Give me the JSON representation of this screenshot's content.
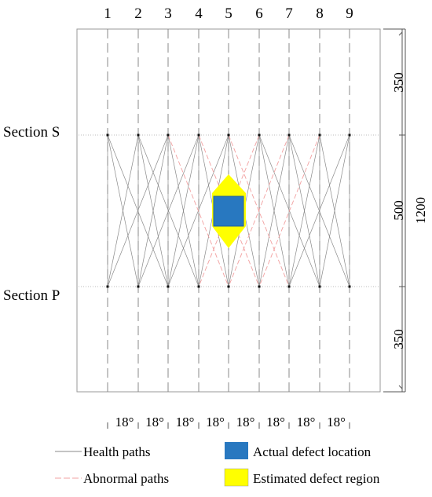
{
  "columns": [
    "1",
    "2",
    "3",
    "4",
    "5",
    "6",
    "7",
    "8",
    "9"
  ],
  "sections": {
    "top": "Section S",
    "bottom": "Section P"
  },
  "dimensions": {
    "upper": "350",
    "middle": "500",
    "lower": "350",
    "total": "1200"
  },
  "angle_label": "18°",
  "legend": {
    "health": "Health paths",
    "abnormal": "Abnormal paths",
    "actual": "Actual defect location",
    "estimated": "Estimated defect region"
  },
  "colors": {
    "health_path": "#8a8a8a",
    "abnormal_path": "#f2a0a0",
    "actual_defect": "#2878c0",
    "estimated_region": "#ffff00"
  }
}
